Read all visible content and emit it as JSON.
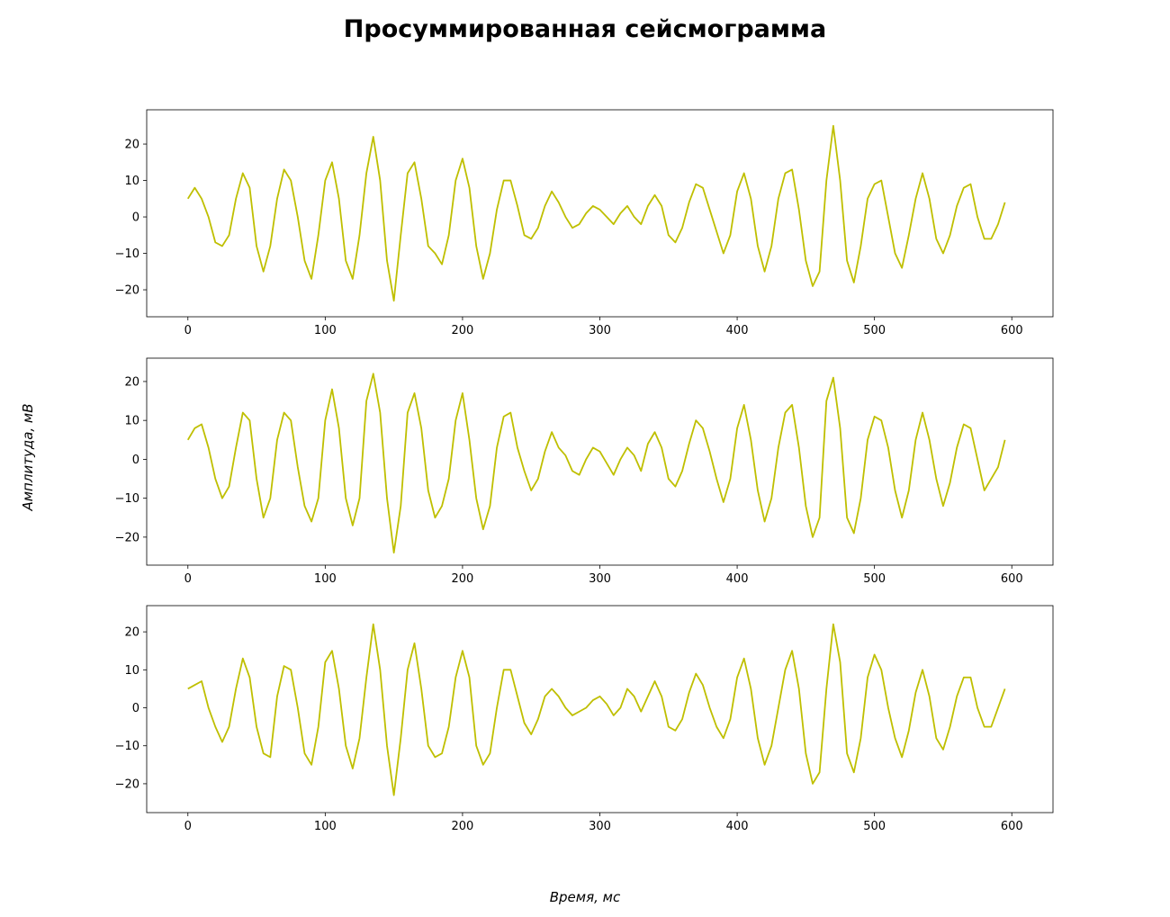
{
  "title": "Просуммированная сейсмограмма",
  "xlabel": "Время, мс",
  "ylabel": "Амплитуда, мВ",
  "chart_data": [
    {
      "type": "line",
      "color": "#bfbf00",
      "xlim": [
        -30,
        630
      ],
      "ylim": [
        -27.4,
        29.4
      ],
      "xticks": [
        0,
        100,
        200,
        300,
        400,
        500,
        600
      ],
      "yticks": [
        {
          "value": -20,
          "label": "−20"
        },
        {
          "value": -10,
          "label": "−10"
        },
        0,
        10,
        20
      ],
      "x": [
        0,
        5,
        10,
        15,
        20,
        25,
        30,
        35,
        40,
        45,
        50,
        55,
        60,
        65,
        70,
        75,
        80,
        85,
        90,
        95,
        100,
        105,
        110,
        115,
        120,
        125,
        130,
        135,
        140,
        145,
        150,
        155,
        160,
        165,
        170,
        175,
        180,
        185,
        190,
        195,
        200,
        205,
        210,
        215,
        220,
        225,
        230,
        235,
        240,
        245,
        250,
        255,
        260,
        265,
        270,
        275,
        280,
        285,
        290,
        295,
        300,
        305,
        310,
        315,
        320,
        325,
        330,
        335,
        340,
        345,
        350,
        355,
        360,
        365,
        370,
        375,
        380,
        385,
        390,
        395,
        400,
        405,
        410,
        415,
        420,
        425,
        430,
        435,
        440,
        445,
        450,
        455,
        460,
        465,
        470,
        475,
        480,
        485,
        490,
        495,
        500,
        505,
        510,
        515,
        520,
        525,
        530,
        535,
        540,
        545,
        550,
        555,
        560,
        565,
        570,
        575,
        580,
        585,
        590,
        595
      ],
      "values": [
        5,
        8,
        5,
        0,
        -7,
        -8,
        -5,
        5,
        12,
        8,
        -8,
        -15,
        -8,
        5,
        13,
        10,
        0,
        -12,
        -17,
        -5,
        10,
        15,
        5,
        -12,
        -17,
        -5,
        12,
        22,
        10,
        -12,
        -23,
        -5,
        12,
        15,
        5,
        -8,
        -10,
        -13,
        -5,
        10,
        16,
        8,
        -8,
        -17,
        -10,
        2,
        10,
        10,
        3,
        -5,
        -6,
        -3,
        3,
        7,
        4,
        0,
        -3,
        -2,
        1,
        3,
        2,
        0,
        -2,
        1,
        3,
        0,
        -2,
        3,
        6,
        3,
        -5,
        -7,
        -3,
        4,
        9,
        8,
        2,
        -4,
        -10,
        -5,
        7,
        12,
        5,
        -8,
        -15,
        -8,
        5,
        12,
        13,
        2,
        -12,
        -19,
        -15,
        10,
        25,
        10,
        -12,
        -18,
        -8,
        5,
        9,
        10,
        0,
        -10,
        -14,
        -5,
        5,
        12,
        5,
        -6,
        -10,
        -5,
        3,
        8,
        9,
        0,
        -6,
        -6,
        -2,
        4
      ]
    },
    {
      "type": "line",
      "color": "#bfbf00",
      "xlim": [
        -30,
        630
      ],
      "ylim": [
        -27.2,
        26
      ],
      "xticks": [
        0,
        100,
        200,
        300,
        400,
        500,
        600
      ],
      "yticks": [
        {
          "value": -20,
          "label": "−20"
        },
        {
          "value": -10,
          "label": "−10"
        },
        0,
        10,
        20
      ],
      "x": [
        0,
        5,
        10,
        15,
        20,
        25,
        30,
        35,
        40,
        45,
        50,
        55,
        60,
        65,
        70,
        75,
        80,
        85,
        90,
        95,
        100,
        105,
        110,
        115,
        120,
        125,
        130,
        135,
        140,
        145,
        150,
        155,
        160,
        165,
        170,
        175,
        180,
        185,
        190,
        195,
        200,
        205,
        210,
        215,
        220,
        225,
        230,
        235,
        240,
        245,
        250,
        255,
        260,
        265,
        270,
        275,
        280,
        285,
        290,
        295,
        300,
        305,
        310,
        315,
        320,
        325,
        330,
        335,
        340,
        345,
        350,
        355,
        360,
        365,
        370,
        375,
        380,
        385,
        390,
        395,
        400,
        405,
        410,
        415,
        420,
        425,
        430,
        435,
        440,
        445,
        450,
        455,
        460,
        465,
        470,
        475,
        480,
        485,
        490,
        495,
        500,
        505,
        510,
        515,
        520,
        525,
        530,
        535,
        540,
        545,
        550,
        555,
        560,
        565,
        570,
        575,
        580,
        585,
        590,
        595
      ],
      "values": [
        5,
        8,
        9,
        3,
        -5,
        -10,
        -7,
        3,
        12,
        10,
        -5,
        -15,
        -10,
        5,
        12,
        10,
        -2,
        -12,
        -16,
        -10,
        10,
        18,
        8,
        -10,
        -17,
        -10,
        15,
        22,
        12,
        -10,
        -24,
        -12,
        12,
        17,
        8,
        -8,
        -15,
        -12,
        -5,
        10,
        17,
        5,
        -10,
        -18,
        -12,
        3,
        11,
        12,
        3,
        -3,
        -8,
        -5,
        2,
        7,
        3,
        1,
        -3,
        -4,
        0,
        3,
        2,
        -1,
        -4,
        0,
        3,
        1,
        -3,
        4,
        7,
        3,
        -5,
        -7,
        -3,
        4,
        10,
        8,
        2,
        -5,
        -11,
        -5,
        8,
        14,
        5,
        -8,
        -16,
        -10,
        3,
        12,
        14,
        3,
        -12,
        -20,
        -15,
        15,
        21,
        8,
        -15,
        -19,
        -10,
        5,
        11,
        10,
        3,
        -8,
        -15,
        -8,
        5,
        12,
        5,
        -5,
        -12,
        -6,
        3,
        9,
        8,
        0,
        -8,
        -5,
        -2,
        5
      ]
    },
    {
      "type": "line",
      "color": "#bfbf00",
      "xlim": [
        -30,
        630
      ],
      "ylim": [
        -27.6,
        26.9
      ],
      "xticks": [
        0,
        100,
        200,
        300,
        400,
        500,
        600
      ],
      "yticks": [
        {
          "value": -20,
          "label": "−20"
        },
        {
          "value": -10,
          "label": "−10"
        },
        0,
        10,
        20
      ],
      "x": [
        0,
        5,
        10,
        15,
        20,
        25,
        30,
        35,
        40,
        45,
        50,
        55,
        60,
        65,
        70,
        75,
        80,
        85,
        90,
        95,
        100,
        105,
        110,
        115,
        120,
        125,
        130,
        135,
        140,
        145,
        150,
        155,
        160,
        165,
        170,
        175,
        180,
        185,
        190,
        195,
        200,
        205,
        210,
        215,
        220,
        225,
        230,
        235,
        240,
        245,
        250,
        255,
        260,
        265,
        270,
        275,
        280,
        285,
        290,
        295,
        300,
        305,
        310,
        315,
        320,
        325,
        330,
        335,
        340,
        345,
        350,
        355,
        360,
        365,
        370,
        375,
        380,
        385,
        390,
        395,
        400,
        405,
        410,
        415,
        420,
        425,
        430,
        435,
        440,
        445,
        450,
        455,
        460,
        465,
        470,
        475,
        480,
        485,
        490,
        495,
        500,
        505,
        510,
        515,
        520,
        525,
        530,
        535,
        540,
        545,
        550,
        555,
        560,
        565,
        570,
        575,
        580,
        585,
        590,
        595
      ],
      "values": [
        5,
        6,
        7,
        0,
        -5,
        -9,
        -5,
        5,
        13,
        8,
        -5,
        -12,
        -13,
        3,
        11,
        10,
        0,
        -12,
        -15,
        -5,
        12,
        15,
        5,
        -10,
        -16,
        -8,
        8,
        22,
        10,
        -10,
        -23,
        -8,
        10,
        17,
        5,
        -10,
        -13,
        -12,
        -5,
        8,
        15,
        8,
        -10,
        -15,
        -12,
        0,
        10,
        10,
        3,
        -4,
        -7,
        -3,
        3,
        5,
        3,
        0,
        -2,
        -1,
        0,
        2,
        3,
        1,
        -2,
        0,
        5,
        3,
        -1,
        3,
        7,
        3,
        -5,
        -6,
        -3,
        4,
        9,
        6,
        0,
        -5,
        -8,
        -3,
        8,
        13,
        5,
        -8,
        -15,
        -10,
        0,
        10,
        15,
        5,
        -12,
        -20,
        -17,
        5,
        22,
        12,
        -12,
        -17,
        -8,
        8,
        14,
        10,
        0,
        -8,
        -13,
        -6,
        4,
        10,
        3,
        -8,
        -11,
        -5,
        3,
        8,
        8,
        0,
        -5,
        -5,
        0,
        5
      ]
    }
  ]
}
